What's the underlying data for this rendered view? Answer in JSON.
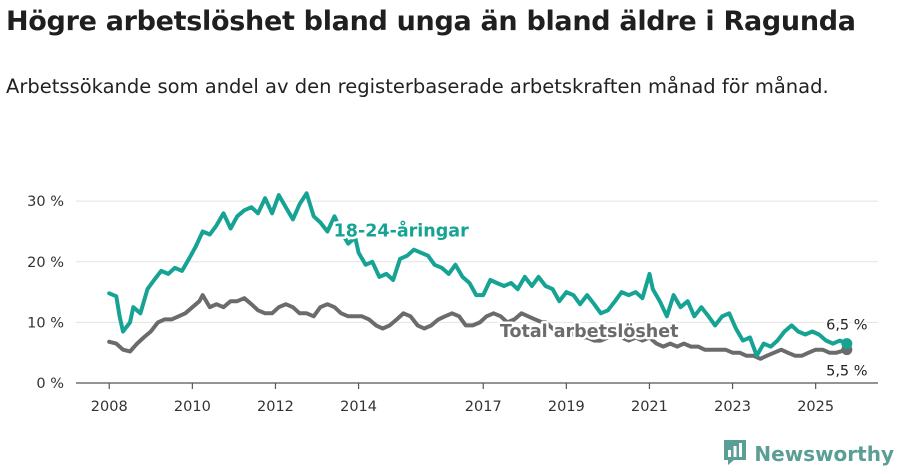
{
  "title": "Högre arbetslöshet bland unga än bland äldre i Ragunda",
  "subtitle": "Arbetssökande som andel av den registerbaserade arbetskraften månad för månad.",
  "brand": {
    "name": "Newsworthy",
    "icon": "bar-chart-logo-icon"
  },
  "colors": {
    "youth": "#16a394",
    "total": "#6b6b6b"
  },
  "chart_data": {
    "type": "line",
    "title": "Högre arbetslöshet bland unga än bland äldre i Ragunda",
    "xlabel": "",
    "ylabel": "",
    "ylim": [
      0,
      33
    ],
    "xlim": [
      2007.2,
      2026.5
    ],
    "yticks": [
      0,
      10,
      20,
      30
    ],
    "ytick_labels": [
      "0 %",
      "10 %",
      "20 %",
      "30 %"
    ],
    "xticks": [
      2008,
      2010,
      2012,
      2014,
      2017,
      2019,
      2021,
      2023,
      2025
    ],
    "grid": true,
    "series": [
      {
        "name": "18-24-åringar",
        "label": "18-24-åringar",
        "color": "#16a394",
        "end_label": "6,5 %",
        "points": [
          [
            2008.0,
            14.8
          ],
          [
            2008.17,
            14.3
          ],
          [
            2008.25,
            11.0
          ],
          [
            2008.33,
            8.5
          ],
          [
            2008.5,
            10.0
          ],
          [
            2008.58,
            12.5
          ],
          [
            2008.75,
            11.5
          ],
          [
            2008.92,
            15.5
          ],
          [
            2009.08,
            17.0
          ],
          [
            2009.25,
            18.5
          ],
          [
            2009.42,
            18.0
          ],
          [
            2009.58,
            19.0
          ],
          [
            2009.75,
            18.5
          ],
          [
            2009.92,
            20.5
          ],
          [
            2010.08,
            22.5
          ],
          [
            2010.25,
            25.0
          ],
          [
            2010.42,
            24.5
          ],
          [
            2010.58,
            26.0
          ],
          [
            2010.75,
            28.0
          ],
          [
            2010.92,
            25.5
          ],
          [
            2011.08,
            27.5
          ],
          [
            2011.25,
            28.5
          ],
          [
            2011.42,
            29.0
          ],
          [
            2011.58,
            28.0
          ],
          [
            2011.75,
            30.5
          ],
          [
            2011.92,
            28.0
          ],
          [
            2012.08,
            31.0
          ],
          [
            2012.25,
            29.0
          ],
          [
            2012.42,
            27.0
          ],
          [
            2012.58,
            29.5
          ],
          [
            2012.75,
            31.3
          ],
          [
            2012.92,
            27.5
          ],
          [
            2013.08,
            26.5
          ],
          [
            2013.25,
            25.0
          ],
          [
            2013.42,
            27.5
          ],
          [
            2013.58,
            25.0
          ],
          [
            2013.75,
            23.0
          ],
          [
            2013.92,
            24.0
          ],
          [
            2014.0,
            21.5
          ],
          [
            2014.17,
            19.5
          ],
          [
            2014.33,
            20.0
          ],
          [
            2014.5,
            17.5
          ],
          [
            2014.67,
            18.0
          ],
          [
            2014.83,
            17.0
          ],
          [
            2015.0,
            20.5
          ],
          [
            2015.17,
            21.0
          ],
          [
            2015.33,
            22.0
          ],
          [
            2015.5,
            21.5
          ],
          [
            2015.67,
            21.0
          ],
          [
            2015.83,
            19.5
          ],
          [
            2016.0,
            19.0
          ],
          [
            2016.17,
            18.0
          ],
          [
            2016.33,
            19.5
          ],
          [
            2016.5,
            17.5
          ],
          [
            2016.67,
            16.5
          ],
          [
            2016.83,
            14.5
          ],
          [
            2017.0,
            14.5
          ],
          [
            2017.17,
            17.0
          ],
          [
            2017.33,
            16.5
          ],
          [
            2017.5,
            16.0
          ],
          [
            2017.67,
            16.5
          ],
          [
            2017.83,
            15.5
          ],
          [
            2018.0,
            17.5
          ],
          [
            2018.17,
            16.0
          ],
          [
            2018.33,
            17.5
          ],
          [
            2018.5,
            16.0
          ],
          [
            2018.67,
            15.5
          ],
          [
            2018.83,
            13.5
          ],
          [
            2019.0,
            15.0
          ],
          [
            2019.17,
            14.5
          ],
          [
            2019.33,
            13.0
          ],
          [
            2019.5,
            14.5
          ],
          [
            2019.67,
            13.0
          ],
          [
            2019.83,
            11.5
          ],
          [
            2020.0,
            12.0
          ],
          [
            2020.17,
            13.5
          ],
          [
            2020.33,
            15.0
          ],
          [
            2020.5,
            14.5
          ],
          [
            2020.67,
            15.0
          ],
          [
            2020.83,
            14.0
          ],
          [
            2021.0,
            18.0
          ],
          [
            2021.08,
            15.5
          ],
          [
            2021.25,
            13.5
          ],
          [
            2021.42,
            11.0
          ],
          [
            2021.58,
            14.5
          ],
          [
            2021.75,
            12.5
          ],
          [
            2021.92,
            13.5
          ],
          [
            2022.08,
            11.0
          ],
          [
            2022.25,
            12.5
          ],
          [
            2022.42,
            11.0
          ],
          [
            2022.58,
            9.5
          ],
          [
            2022.75,
            11.0
          ],
          [
            2022.92,
            11.5
          ],
          [
            2023.08,
            9.0
          ],
          [
            2023.25,
            7.0
          ],
          [
            2023.42,
            7.5
          ],
          [
            2023.58,
            4.5
          ],
          [
            2023.75,
            6.5
          ],
          [
            2023.92,
            6.0
          ],
          [
            2024.08,
            7.0
          ],
          [
            2024.25,
            8.5
          ],
          [
            2024.42,
            9.5
          ],
          [
            2024.58,
            8.5
          ],
          [
            2024.75,
            8.0
          ],
          [
            2024.92,
            8.5
          ],
          [
            2025.08,
            8.0
          ],
          [
            2025.25,
            7.0
          ],
          [
            2025.42,
            6.5
          ],
          [
            2025.58,
            7.0
          ],
          [
            2025.75,
            6.5
          ]
        ]
      },
      {
        "name": "Total arbetslöshet",
        "label": "Total arbetslöshet",
        "color": "#6b6b6b",
        "end_label": "5,5 %",
        "points": [
          [
            2008.0,
            6.8
          ],
          [
            2008.17,
            6.5
          ],
          [
            2008.33,
            5.5
          ],
          [
            2008.5,
            5.2
          ],
          [
            2008.67,
            6.5
          ],
          [
            2008.83,
            7.5
          ],
          [
            2009.0,
            8.5
          ],
          [
            2009.17,
            10.0
          ],
          [
            2009.33,
            10.5
          ],
          [
            2009.5,
            10.5
          ],
          [
            2009.67,
            11.0
          ],
          [
            2009.83,
            11.5
          ],
          [
            2010.0,
            12.5
          ],
          [
            2010.17,
            13.5
          ],
          [
            2010.25,
            14.5
          ],
          [
            2010.42,
            12.5
          ],
          [
            2010.58,
            13.0
          ],
          [
            2010.75,
            12.5
          ],
          [
            2010.92,
            13.5
          ],
          [
            2011.08,
            13.5
          ],
          [
            2011.25,
            14.0
          ],
          [
            2011.42,
            13.0
          ],
          [
            2011.58,
            12.0
          ],
          [
            2011.75,
            11.5
          ],
          [
            2011.92,
            11.5
          ],
          [
            2012.08,
            12.5
          ],
          [
            2012.25,
            13.0
          ],
          [
            2012.42,
            12.5
          ],
          [
            2012.58,
            11.5
          ],
          [
            2012.75,
            11.5
          ],
          [
            2012.92,
            11.0
          ],
          [
            2013.08,
            12.5
          ],
          [
            2013.25,
            13.0
          ],
          [
            2013.42,
            12.5
          ],
          [
            2013.58,
            11.5
          ],
          [
            2013.75,
            11.0
          ],
          [
            2013.92,
            11.0
          ],
          [
            2014.08,
            11.0
          ],
          [
            2014.25,
            10.5
          ],
          [
            2014.42,
            9.5
          ],
          [
            2014.58,
            9.0
          ],
          [
            2014.75,
            9.5
          ],
          [
            2014.92,
            10.5
          ],
          [
            2015.08,
            11.5
          ],
          [
            2015.25,
            11.0
          ],
          [
            2015.42,
            9.5
          ],
          [
            2015.58,
            9.0
          ],
          [
            2015.75,
            9.5
          ],
          [
            2015.92,
            10.5
          ],
          [
            2016.08,
            11.0
          ],
          [
            2016.25,
            11.5
          ],
          [
            2016.42,
            11.0
          ],
          [
            2016.58,
            9.5
          ],
          [
            2016.75,
            9.5
          ],
          [
            2016.92,
            10.0
          ],
          [
            2017.08,
            11.0
          ],
          [
            2017.25,
            11.5
          ],
          [
            2017.42,
            11.0
          ],
          [
            2017.58,
            10.0
          ],
          [
            2017.75,
            10.5
          ],
          [
            2017.92,
            11.5
          ],
          [
            2018.08,
            11.0
          ],
          [
            2018.25,
            10.5
          ],
          [
            2018.42,
            10.0
          ],
          [
            2018.5,
            10.0
          ],
          [
            2018.67,
            9.0
          ],
          [
            2018.83,
            8.0
          ],
          [
            2019.0,
            8.5
          ],
          [
            2019.17,
            8.0
          ],
          [
            2019.33,
            7.5
          ],
          [
            2019.5,
            7.5
          ],
          [
            2019.67,
            7.0
          ],
          [
            2019.83,
            7.0
          ],
          [
            2020.0,
            7.5
          ],
          [
            2020.17,
            8.0
          ],
          [
            2020.33,
            7.5
          ],
          [
            2020.5,
            7.0
          ],
          [
            2020.67,
            7.5
          ],
          [
            2020.83,
            7.0
          ],
          [
            2021.0,
            7.5
          ],
          [
            2021.17,
            6.5
          ],
          [
            2021.33,
            6.0
          ],
          [
            2021.5,
            6.5
          ],
          [
            2021.67,
            6.0
          ],
          [
            2021.83,
            6.5
          ],
          [
            2022.0,
            6.0
          ],
          [
            2022.17,
            6.0
          ],
          [
            2022.33,
            5.5
          ],
          [
            2022.5,
            5.5
          ],
          [
            2022.67,
            5.5
          ],
          [
            2022.83,
            5.5
          ],
          [
            2023.0,
            5.0
          ],
          [
            2023.17,
            5.0
          ],
          [
            2023.33,
            4.5
          ],
          [
            2023.5,
            4.5
          ],
          [
            2023.67,
            4.0
          ],
          [
            2023.83,
            4.5
          ],
          [
            2024.0,
            5.0
          ],
          [
            2024.17,
            5.5
          ],
          [
            2024.33,
            5.0
          ],
          [
            2024.5,
            4.5
          ],
          [
            2024.67,
            4.5
          ],
          [
            2024.83,
            5.0
          ],
          [
            2025.0,
            5.5
          ],
          [
            2025.17,
            5.5
          ],
          [
            2025.33,
            5.0
          ],
          [
            2025.5,
            5.0
          ],
          [
            2025.75,
            5.5
          ]
        ]
      }
    ]
  }
}
